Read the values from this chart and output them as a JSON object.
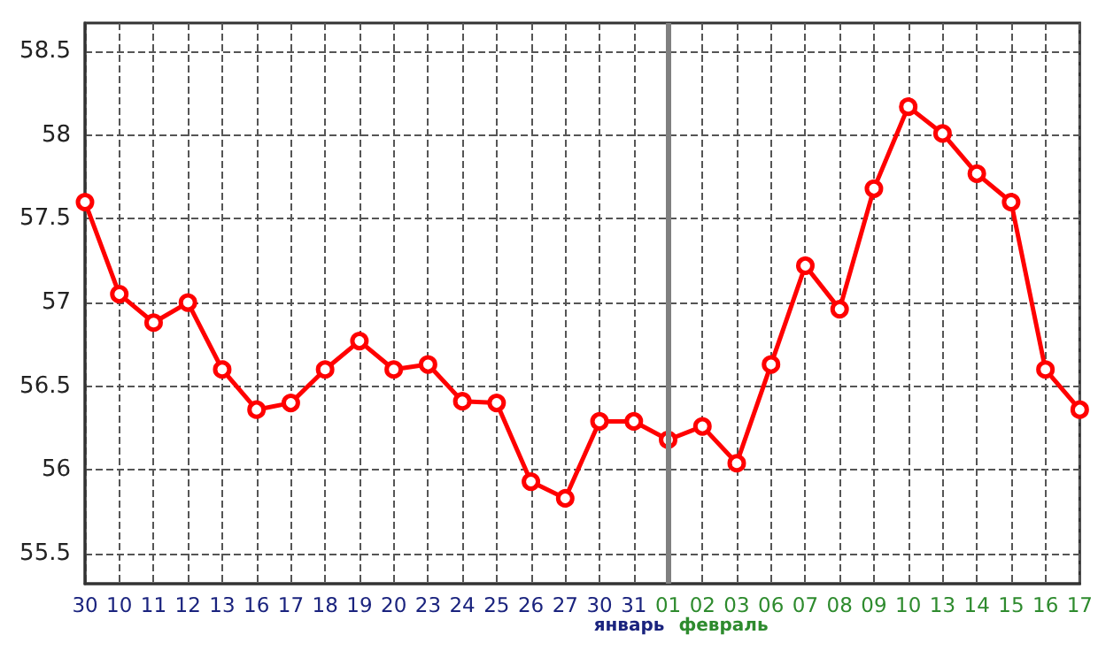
{
  "chart_data": {
    "type": "line",
    "categories": [
      "30",
      "10",
      "11",
      "12",
      "13",
      "16",
      "17",
      "18",
      "19",
      "20",
      "23",
      "24",
      "25",
      "26",
      "27",
      "30",
      "31",
      "01",
      "02",
      "03",
      "06",
      "07",
      "08",
      "09",
      "10",
      "13",
      "14",
      "15",
      "16",
      "17"
    ],
    "series": [
      {
        "color": "#ff0000",
        "values": [
          57.6,
          57.05,
          56.88,
          57.0,
          56.6,
          56.36,
          56.4,
          56.6,
          56.77,
          56.6,
          56.63,
          56.41,
          56.4,
          55.93,
          55.83,
          56.29,
          56.29,
          56.18,
          56.26,
          56.04,
          56.63,
          57.22,
          56.96,
          57.68,
          58.17,
          58.01,
          57.77,
          57.6,
          56.6,
          56.36
        ]
      }
    ],
    "ylim": [
      55.32,
      58.67
    ],
    "yticks": [
      55.5,
      56,
      56.5,
      57,
      57.5,
      58,
      58.5
    ],
    "ref_lines": [
      {
        "axis": "x",
        "value": "01",
        "color": "#808080"
      }
    ],
    "annotations": [
      "январь",
      "февраль"
    ],
    "grid": true,
    "marker": "circle",
    "line_style": "solid"
  }
}
